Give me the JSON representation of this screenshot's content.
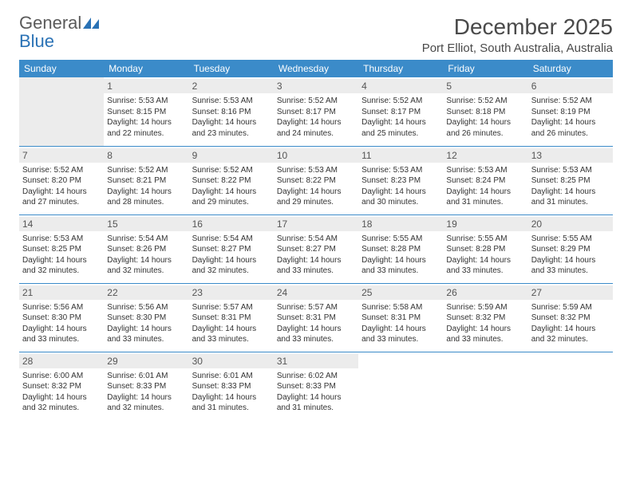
{
  "logo": {
    "word1": "General",
    "word2": "Blue"
  },
  "title": "December 2025",
  "location": "Port Elliot, South Australia, Australia",
  "colors": {
    "header_bg": "#3b8bc9",
    "header_text": "#ffffff",
    "border": "#3b8bc9",
    "daynum_bg": "#ececec",
    "text": "#333333",
    "logo_gray": "#5a5a5a",
    "logo_blue": "#2a72b5"
  },
  "day_headers": [
    "Sunday",
    "Monday",
    "Tuesday",
    "Wednesday",
    "Thursday",
    "Friday",
    "Saturday"
  ],
  "weeks": [
    [
      null,
      {
        "n": "1",
        "sr": "Sunrise: 5:53 AM",
        "ss": "Sunset: 8:15 PM",
        "d1": "Daylight: 14 hours",
        "d2": "and 22 minutes."
      },
      {
        "n": "2",
        "sr": "Sunrise: 5:53 AM",
        "ss": "Sunset: 8:16 PM",
        "d1": "Daylight: 14 hours",
        "d2": "and 23 minutes."
      },
      {
        "n": "3",
        "sr": "Sunrise: 5:52 AM",
        "ss": "Sunset: 8:17 PM",
        "d1": "Daylight: 14 hours",
        "d2": "and 24 minutes."
      },
      {
        "n": "4",
        "sr": "Sunrise: 5:52 AM",
        "ss": "Sunset: 8:17 PM",
        "d1": "Daylight: 14 hours",
        "d2": "and 25 minutes."
      },
      {
        "n": "5",
        "sr": "Sunrise: 5:52 AM",
        "ss": "Sunset: 8:18 PM",
        "d1": "Daylight: 14 hours",
        "d2": "and 26 minutes."
      },
      {
        "n": "6",
        "sr": "Sunrise: 5:52 AM",
        "ss": "Sunset: 8:19 PM",
        "d1": "Daylight: 14 hours",
        "d2": "and 26 minutes."
      }
    ],
    [
      {
        "n": "7",
        "sr": "Sunrise: 5:52 AM",
        "ss": "Sunset: 8:20 PM",
        "d1": "Daylight: 14 hours",
        "d2": "and 27 minutes."
      },
      {
        "n": "8",
        "sr": "Sunrise: 5:52 AM",
        "ss": "Sunset: 8:21 PM",
        "d1": "Daylight: 14 hours",
        "d2": "and 28 minutes."
      },
      {
        "n": "9",
        "sr": "Sunrise: 5:52 AM",
        "ss": "Sunset: 8:22 PM",
        "d1": "Daylight: 14 hours",
        "d2": "and 29 minutes."
      },
      {
        "n": "10",
        "sr": "Sunrise: 5:53 AM",
        "ss": "Sunset: 8:22 PM",
        "d1": "Daylight: 14 hours",
        "d2": "and 29 minutes."
      },
      {
        "n": "11",
        "sr": "Sunrise: 5:53 AM",
        "ss": "Sunset: 8:23 PM",
        "d1": "Daylight: 14 hours",
        "d2": "and 30 minutes."
      },
      {
        "n": "12",
        "sr": "Sunrise: 5:53 AM",
        "ss": "Sunset: 8:24 PM",
        "d1": "Daylight: 14 hours",
        "d2": "and 31 minutes."
      },
      {
        "n": "13",
        "sr": "Sunrise: 5:53 AM",
        "ss": "Sunset: 8:25 PM",
        "d1": "Daylight: 14 hours",
        "d2": "and 31 minutes."
      }
    ],
    [
      {
        "n": "14",
        "sr": "Sunrise: 5:53 AM",
        "ss": "Sunset: 8:25 PM",
        "d1": "Daylight: 14 hours",
        "d2": "and 32 minutes."
      },
      {
        "n": "15",
        "sr": "Sunrise: 5:54 AM",
        "ss": "Sunset: 8:26 PM",
        "d1": "Daylight: 14 hours",
        "d2": "and 32 minutes."
      },
      {
        "n": "16",
        "sr": "Sunrise: 5:54 AM",
        "ss": "Sunset: 8:27 PM",
        "d1": "Daylight: 14 hours",
        "d2": "and 32 minutes."
      },
      {
        "n": "17",
        "sr": "Sunrise: 5:54 AM",
        "ss": "Sunset: 8:27 PM",
        "d1": "Daylight: 14 hours",
        "d2": "and 33 minutes."
      },
      {
        "n": "18",
        "sr": "Sunrise: 5:55 AM",
        "ss": "Sunset: 8:28 PM",
        "d1": "Daylight: 14 hours",
        "d2": "and 33 minutes."
      },
      {
        "n": "19",
        "sr": "Sunrise: 5:55 AM",
        "ss": "Sunset: 8:28 PM",
        "d1": "Daylight: 14 hours",
        "d2": "and 33 minutes."
      },
      {
        "n": "20",
        "sr": "Sunrise: 5:55 AM",
        "ss": "Sunset: 8:29 PM",
        "d1": "Daylight: 14 hours",
        "d2": "and 33 minutes."
      }
    ],
    [
      {
        "n": "21",
        "sr": "Sunrise: 5:56 AM",
        "ss": "Sunset: 8:30 PM",
        "d1": "Daylight: 14 hours",
        "d2": "and 33 minutes."
      },
      {
        "n": "22",
        "sr": "Sunrise: 5:56 AM",
        "ss": "Sunset: 8:30 PM",
        "d1": "Daylight: 14 hours",
        "d2": "and 33 minutes."
      },
      {
        "n": "23",
        "sr": "Sunrise: 5:57 AM",
        "ss": "Sunset: 8:31 PM",
        "d1": "Daylight: 14 hours",
        "d2": "and 33 minutes."
      },
      {
        "n": "24",
        "sr": "Sunrise: 5:57 AM",
        "ss": "Sunset: 8:31 PM",
        "d1": "Daylight: 14 hours",
        "d2": "and 33 minutes."
      },
      {
        "n": "25",
        "sr": "Sunrise: 5:58 AM",
        "ss": "Sunset: 8:31 PM",
        "d1": "Daylight: 14 hours",
        "d2": "and 33 minutes."
      },
      {
        "n": "26",
        "sr": "Sunrise: 5:59 AM",
        "ss": "Sunset: 8:32 PM",
        "d1": "Daylight: 14 hours",
        "d2": "and 33 minutes."
      },
      {
        "n": "27",
        "sr": "Sunrise: 5:59 AM",
        "ss": "Sunset: 8:32 PM",
        "d1": "Daylight: 14 hours",
        "d2": "and 32 minutes."
      }
    ],
    [
      {
        "n": "28",
        "sr": "Sunrise: 6:00 AM",
        "ss": "Sunset: 8:32 PM",
        "d1": "Daylight: 14 hours",
        "d2": "and 32 minutes."
      },
      {
        "n": "29",
        "sr": "Sunrise: 6:01 AM",
        "ss": "Sunset: 8:33 PM",
        "d1": "Daylight: 14 hours",
        "d2": "and 32 minutes."
      },
      {
        "n": "30",
        "sr": "Sunrise: 6:01 AM",
        "ss": "Sunset: 8:33 PM",
        "d1": "Daylight: 14 hours",
        "d2": "and 31 minutes."
      },
      {
        "n": "31",
        "sr": "Sunrise: 6:02 AM",
        "ss": "Sunset: 8:33 PM",
        "d1": "Daylight: 14 hours",
        "d2": "and 31 minutes."
      },
      null,
      null,
      null
    ]
  ]
}
